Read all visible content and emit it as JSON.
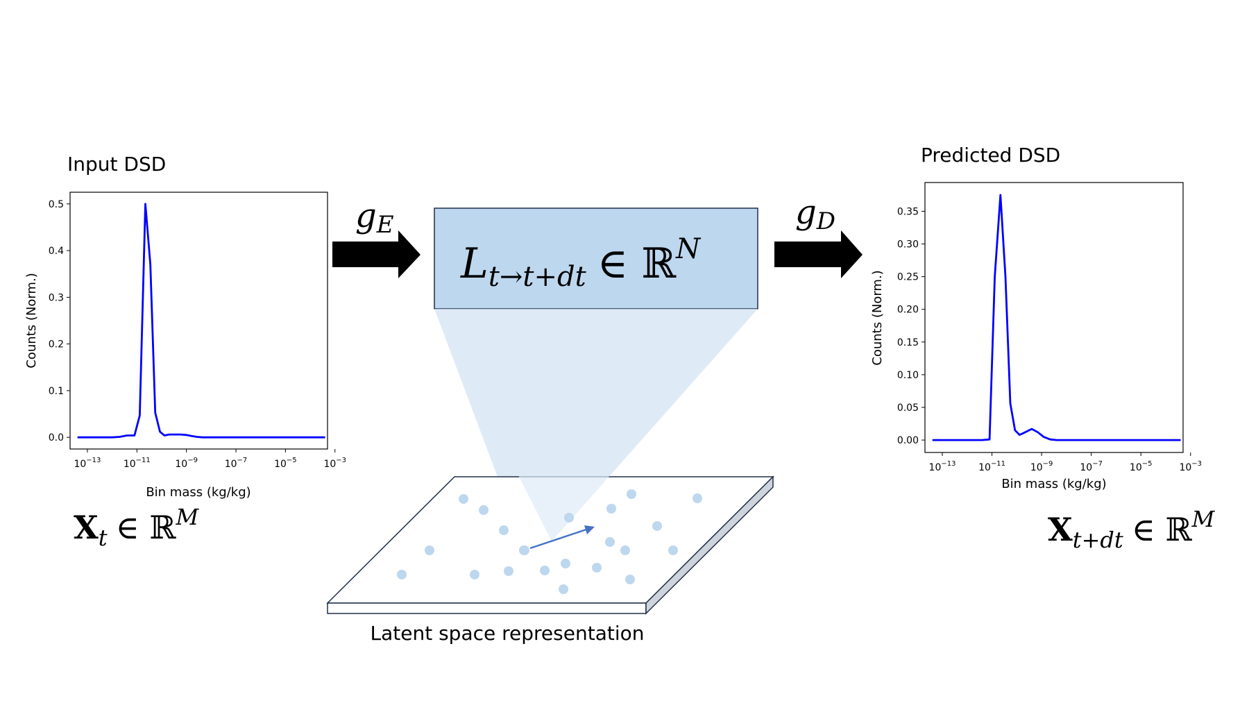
{
  "input_panel": {
    "title": "Input DSD",
    "symbol_main": "X",
    "symbol_sub": "t",
    "symbol_in": "∈ ℝ",
    "symbol_sup": "M"
  },
  "output_panel": {
    "title": "Predicted DSD",
    "symbol_main": "X",
    "symbol_sub": "t+dt",
    "symbol_in": "∈ ℝ",
    "symbol_sup": "M"
  },
  "encoder": {
    "symbol": "g",
    "sub": "E"
  },
  "decoder": {
    "symbol": "g",
    "sub": "D"
  },
  "latent_box": {
    "main": "L",
    "sub": "t→t+dt",
    "in": "∈ ℝ",
    "sup": "N",
    "fill": "#bdd7ee"
  },
  "latent_plane": {
    "caption": "Latent space representation",
    "point_color": "#bdd7ee",
    "arrow_color": "#4472c4"
  },
  "chart_data": [
    {
      "type": "line",
      "color": "#0000ff",
      "xscale": "log",
      "xlabel": "Bin mass (kg/kg)",
      "ylabel": "Counts (Norm.)",
      "xlim": [
        2e-14,
        0.0005
      ],
      "ylim": [
        -0.025,
        0.525
      ],
      "xticks": [
        {
          "value": 1e-13,
          "base": "10",
          "exp": "−13"
        },
        {
          "value": 1e-11,
          "base": "10",
          "exp": "−11"
        },
        {
          "value": 1e-09,
          "base": "10",
          "exp": "−9"
        },
        {
          "value": 1e-07,
          "base": "10",
          "exp": "−7"
        },
        {
          "value": 1e-05,
          "base": "10",
          "exp": "−5"
        },
        {
          "value": 0.001,
          "base": "10",
          "exp": "−3"
        }
      ],
      "yticks": [
        "0.0",
        "0.1",
        "0.2",
        "0.3",
        "0.4",
        "0.5"
      ],
      "x": [
        4e-14,
        1e-13,
        4e-13,
        1e-12,
        2e-12,
        4e-12,
        8e-12,
        1.3e-11,
        2.2e-11,
        3.5e-11,
        5.5e-11,
        8.5e-11,
        1.3e-10,
        2e-10,
        3.5e-10,
        6e-10,
        1e-09,
        1.6e-09,
        2.6e-09,
        4.5e-09,
        1e-08,
        1e-07,
        1e-06,
        1e-05,
        0.0001,
        0.0004
      ],
      "y": [
        0.0,
        0.0,
        0.0,
        0.0,
        0.001,
        0.004,
        0.004,
        0.047,
        0.5,
        0.37,
        0.053,
        0.012,
        0.004,
        0.006,
        0.006,
        0.006,
        0.005,
        0.003,
        0.001,
        0.0,
        0.0,
        0.0,
        0.0,
        0.0,
        0.0,
        0.0
      ]
    },
    {
      "type": "line",
      "color": "#0000ff",
      "xscale": "log",
      "xlabel": "Bin mass (kg/kg)",
      "ylabel": "Counts (Norm.)",
      "xlim": [
        2e-14,
        0.0005
      ],
      "ylim": [
        -0.019,
        0.394
      ],
      "xticks": [
        {
          "value": 1e-13,
          "base": "10",
          "exp": "−13"
        },
        {
          "value": 1e-11,
          "base": "10",
          "exp": "−11"
        },
        {
          "value": 1e-09,
          "base": "10",
          "exp": "−9"
        },
        {
          "value": 1e-07,
          "base": "10",
          "exp": "−7"
        },
        {
          "value": 1e-05,
          "base": "10",
          "exp": "−5"
        },
        {
          "value": 0.001,
          "base": "10",
          "exp": "−3"
        }
      ],
      "yticks": [
        "0.00",
        "0.05",
        "0.10",
        "0.15",
        "0.20",
        "0.25",
        "0.30",
        "0.35"
      ],
      "x": [
        4e-14,
        1e-13,
        1e-12,
        4e-12,
        8e-12,
        1.3e-11,
        2.2e-11,
        3.5e-11,
        5.5e-11,
        8.5e-11,
        1.3e-10,
        2.2e-10,
        4e-10,
        7e-10,
        1.2e-09,
        2.2e-09,
        4e-09,
        7e-09,
        1.3e-08,
        1e-07,
        1e-06,
        1e-05,
        0.0001,
        0.0004
      ],
      "y": [
        0.0,
        0.0,
        0.0,
        0.0,
        0.001,
        0.25,
        0.375,
        0.25,
        0.056,
        0.015,
        0.008,
        0.012,
        0.017,
        0.012,
        0.005,
        0.001,
        0.0,
        0.0,
        0.0,
        0.0,
        0.0,
        0.0,
        0.0,
        0.0
      ]
    }
  ]
}
